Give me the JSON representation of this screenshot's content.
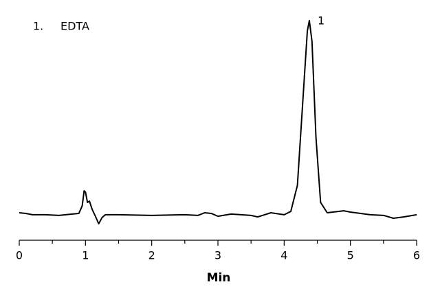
{
  "chart_data": {
    "type": "line",
    "legend_items": [
      {
        "number": "1.",
        "name": "EDTA"
      }
    ],
    "peak_labels": [
      {
        "label": "1",
        "x": 4.38
      }
    ],
    "x": [
      0,
      0.1,
      0.2,
      0.4,
      0.6,
      0.8,
      0.9,
      0.95,
      0.98,
      1.0,
      1.03,
      1.06,
      1.1,
      1.15,
      1.2,
      1.25,
      1.3,
      1.5,
      2.0,
      2.5,
      2.7,
      2.8,
      2.9,
      3.0,
      3.2,
      3.5,
      3.6,
      3.8,
      4.0,
      4.1,
      4.2,
      4.3,
      4.35,
      4.38,
      4.42,
      4.48,
      4.55,
      4.65,
      4.9,
      5.0,
      5.3,
      5.5,
      5.65,
      5.8,
      6.0
    ],
    "values": [
      12.5,
      12.2,
      11.6,
      11.6,
      11.3,
      11.9,
      12.2,
      15.6,
      22.5,
      21.9,
      17.2,
      17.8,
      14.1,
      10.9,
      7.5,
      10.3,
      11.6,
      11.6,
      11.3,
      11.6,
      11.3,
      12.5,
      12.2,
      10.9,
      11.9,
      11.3,
      10.6,
      12.5,
      11.6,
      13.1,
      25,
      71.9,
      95.3,
      100,
      90.6,
      46.9,
      17.2,
      12.5,
      13.4,
      12.8,
      11.6,
      11.3,
      10,
      10.6,
      11.6
    ],
    "color": "#000000",
    "xlim": [
      0,
      6
    ],
    "xticks": [
      0,
      1,
      2,
      3,
      4,
      5,
      6
    ],
    "xminorticks": [
      0.5,
      1.5,
      2.5,
      3.5,
      4.5,
      5.5
    ],
    "ylim": [
      0,
      100
    ],
    "xlabel": "Min"
  }
}
